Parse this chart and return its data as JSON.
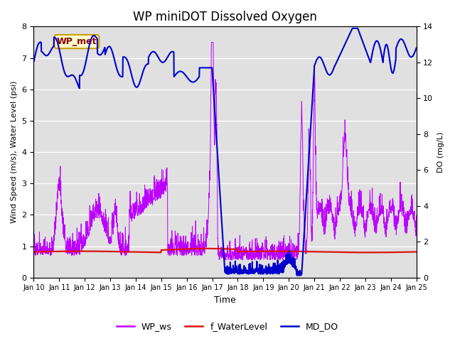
{
  "title": "WP miniDOT Dissolved Oxygen",
  "xlabel": "Time",
  "ylabel_left": "Wind Speed (m/s), Water Level (psi)",
  "ylabel_right": "DO (mg/L)",
  "ylim_left": [
    0.0,
    8.0
  ],
  "ylim_right": [
    0.0,
    14.0
  ],
  "yticks_left": [
    0.0,
    1.0,
    2.0,
    3.0,
    4.0,
    5.0,
    6.0,
    7.0,
    8.0
  ],
  "yticks_right": [
    0,
    2,
    4,
    6,
    8,
    10,
    12,
    14
  ],
  "xtick_labels": [
    "Jan 10",
    "Jan 11",
    "Jan 12",
    "Jan 13",
    "Jan 14",
    "Jan 15",
    "Jan 16",
    "Jan 17",
    "Jan 18",
    "Jan 19",
    "Jan 20",
    "Jan 21",
    "Jan 22",
    "Jan 23",
    "Jan 24",
    "Jan 25"
  ],
  "annotation_text": "WP_met",
  "annotation_color": "#8B0000",
  "annotation_bg": "#FFFACD",
  "annotation_border": "#C8A000",
  "wp_ws_color": "#BB00FF",
  "f_waterlevel_color": "#DD1111",
  "md_do_color": "#0000CC",
  "legend_labels": [
    "WP_ws",
    "f_WaterLevel",
    "MD_DO"
  ],
  "bg_color": "#E0E0E0",
  "grid_color": "#FFFFFF"
}
